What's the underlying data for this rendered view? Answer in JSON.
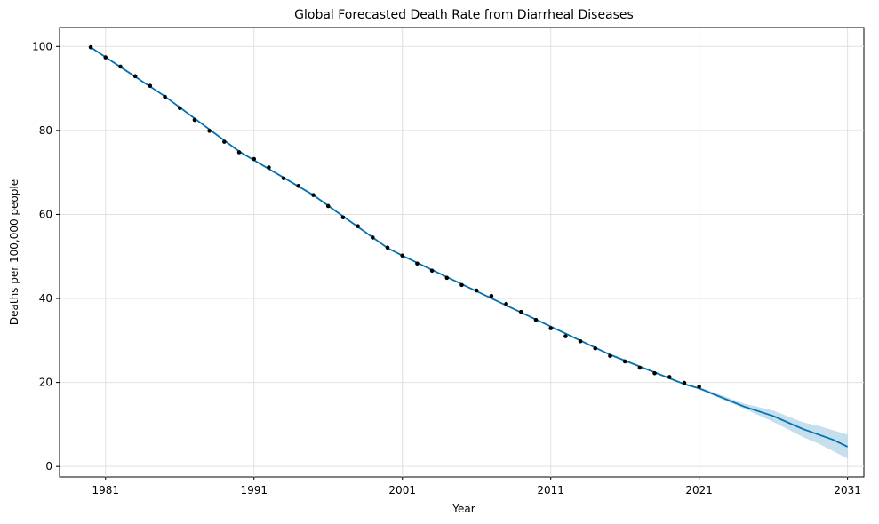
{
  "chart_data": {
    "type": "line",
    "title": "Global Forecasted Death Rate from Diarrheal Diseases",
    "xlabel": "Year",
    "ylabel": "Deaths per 100,000 people",
    "xlim": [
      1977.9,
      2032.1
    ],
    "ylim": [
      -2.5,
      104.5
    ],
    "grid": true,
    "x_ticks": [
      1981,
      1991,
      2001,
      2011,
      2021,
      2031
    ],
    "y_ticks": [
      0,
      20,
      40,
      60,
      80,
      100
    ],
    "colors": {
      "forecast_line": "#0072B2",
      "uncertainty_band": "#9ecae1",
      "observed_points": "#000000",
      "grid": "#e0e0e0"
    },
    "series": [
      {
        "type": "scatter",
        "x": [
          1980,
          1981,
          1982,
          1983,
          1984,
          1985,
          1986,
          1987,
          1988,
          1989,
          1990,
          1991,
          1992,
          1993,
          1994,
          1995,
          1996,
          1997,
          1998,
          1999,
          2000,
          2001,
          2002,
          2003,
          2004,
          2005,
          2006,
          2007,
          2008,
          2009,
          2010,
          2011,
          2012,
          2013,
          2014,
          2015,
          2016,
          2017,
          2018,
          2019,
          2020,
          2021
        ],
        "y": [
          99.8,
          97.4,
          95.2,
          92.9,
          90.6,
          88.0,
          85.3,
          82.5,
          79.9,
          77.3,
          74.8,
          73.2,
          71.2,
          68.6,
          66.8,
          64.6,
          62.0,
          59.3,
          57.2,
          54.5,
          52.1,
          50.2,
          48.3,
          46.6,
          44.9,
          43.2,
          41.9,
          40.6,
          38.7,
          36.8,
          34.9,
          32.9,
          31.0,
          29.8,
          28.1,
          26.3,
          25.0,
          23.5,
          22.2,
          21.3,
          19.9,
          19.0
        ]
      },
      {
        "type": "line",
        "x": [
          1980,
          1985,
          1990,
          1995,
          2000,
          2001,
          2005,
          2010,
          2015,
          2020,
          2021,
          2024,
          2026,
          2028,
          2030,
          2031
        ],
        "y": [
          99.8,
          88.1,
          75.0,
          64.6,
          52.0,
          50.2,
          43.4,
          35.0,
          26.6,
          19.6,
          18.6,
          14.3,
          12.0,
          8.9,
          6.4,
          4.7
        ]
      },
      {
        "type": "band",
        "x": [
          2021,
          2024,
          2026,
          2028,
          2029,
          2031
        ],
        "upper": [
          18.9,
          15.0,
          13.3,
          10.5,
          9.7,
          7.6
        ],
        "lower": [
          18.3,
          13.8,
          10.6,
          7.0,
          5.5,
          1.9
        ]
      }
    ]
  }
}
